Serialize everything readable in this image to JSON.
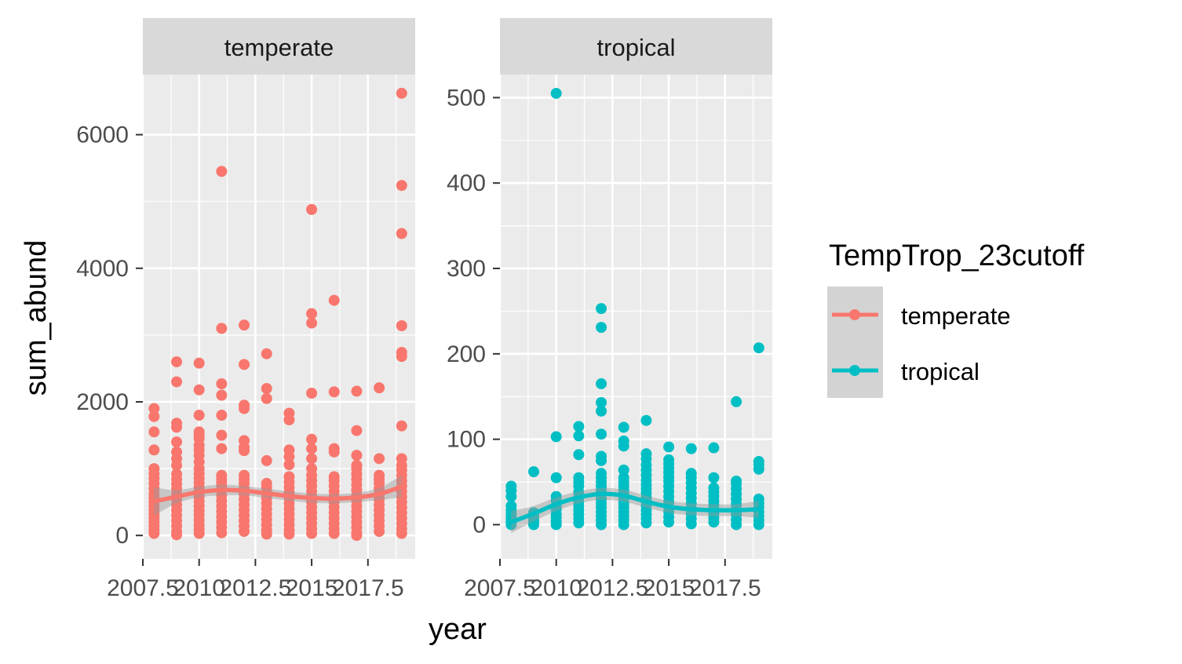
{
  "chart_data": [
    {
      "type": "scatter",
      "facet": "temperate",
      "xlabel": "year",
      "ylabel": "sum_abund",
      "x_ticks": [
        2007.5,
        2010,
        2012.5,
        2015,
        2017.5
      ],
      "x_tick_labels": [
        "2007.5",
        "2010",
        "2012.5",
        "2015",
        "2017.5"
      ],
      "xlim": [
        2007.5,
        2019.6
      ],
      "y_ticks": [
        0,
        2000,
        4000,
        6000
      ],
      "y_tick_labels": [
        "0",
        "2000",
        "4000",
        "6000"
      ],
      "ylim": [
        -350,
        6900
      ],
      "grid": true,
      "series": [
        {
          "name": "temperate",
          "color": "#F8766D",
          "points_by_year": [
            {
              "x": 2008,
              "values": [
                1900,
                1780,
                1550,
                1280,
                1000,
                920,
                850,
                780,
                700,
                620,
                560,
                500,
                440,
                380,
                320,
                260,
                200,
                140,
                80,
                30
              ]
            },
            {
              "x": 2009,
              "values": [
                2600,
                2300,
                1680,
                1620,
                1400,
                1250,
                1150,
                1050,
                920,
                840,
                770,
                700,
                620,
                540,
                460,
                380,
                300,
                220,
                140,
                60,
                10
              ]
            },
            {
              "x": 2010,
              "values": [
                2580,
                2180,
                1800,
                1550,
                1500,
                1450,
                1350,
                1280,
                1200,
                1100,
                1000,
                930,
                860,
                790,
                720,
                650,
                580,
                510,
                440,
                370,
                300,
                230,
                160,
                90,
                30
              ]
            },
            {
              "x": 2011,
              "values": [
                5450,
                3100,
                2270,
                2100,
                1800,
                1500,
                1300,
                900,
                850,
                800,
                740,
                680,
                600,
                520,
                440,
                360,
                280,
                200,
                120,
                40
              ]
            },
            {
              "x": 2012,
              "values": [
                3150,
                2560,
                1950,
                1900,
                1420,
                1320,
                1270,
                900,
                840,
                780,
                700,
                620,
                540,
                460,
                380,
                300,
                220,
                140,
                60
              ]
            },
            {
              "x": 2013,
              "values": [
                2720,
                2200,
                2050,
                1120,
                780,
                720,
                640,
                560,
                480,
                400,
                320,
                240,
                160,
                80,
                20
              ]
            },
            {
              "x": 2014,
              "values": [
                1830,
                1730,
                1280,
                1180,
                1060,
                880,
                800,
                720,
                640,
                560,
                480,
                400,
                320,
                240,
                160,
                80,
                20
              ]
            },
            {
              "x": 2015,
              "values": [
                4880,
                3320,
                3180,
                2130,
                1440,
                1300,
                1150,
                1000,
                900,
                820,
                740,
                660,
                580,
                500,
                420,
                340,
                260,
                180,
                100,
                30
              ]
            },
            {
              "x": 2016,
              "values": [
                3520,
                2150,
                1300,
                1250,
                880,
                820,
                740,
                660,
                580,
                500,
                420,
                340,
                260,
                180,
                100,
                30
              ]
            },
            {
              "x": 2017,
              "values": [
                2160,
                1570,
                1200,
                1050,
                1000,
                920,
                840,
                760,
                680,
                600,
                520,
                440,
                360,
                280,
                200,
                120,
                40,
                0
              ]
            },
            {
              "x": 2018,
              "values": [
                2210,
                1150,
                900,
                840,
                780,
                700,
                620,
                540,
                460,
                380,
                300,
                220,
                140,
                60
              ]
            },
            {
              "x": 2019,
              "values": [
                6620,
                5240,
                4520,
                3140,
                2740,
                2680,
                1640,
                1150,
                1050,
                980,
                900,
                820,
                740,
                660,
                580,
                500,
                420,
                340,
                260,
                180,
                100,
                30
              ]
            }
          ],
          "smooth": [
            {
              "x": 2008,
              "y": 510,
              "lo": 300,
              "hi": 720
            },
            {
              "x": 2009,
              "y": 580,
              "lo": 480,
              "hi": 680
            },
            {
              "x": 2010,
              "y": 650,
              "lo": 570,
              "hi": 730
            },
            {
              "x": 2011,
              "y": 680,
              "lo": 600,
              "hi": 760
            },
            {
              "x": 2012,
              "y": 670,
              "lo": 600,
              "hi": 740
            },
            {
              "x": 2013,
              "y": 630,
              "lo": 560,
              "hi": 700
            },
            {
              "x": 2014,
              "y": 590,
              "lo": 520,
              "hi": 660
            },
            {
              "x": 2015,
              "y": 560,
              "lo": 490,
              "hi": 630
            },
            {
              "x": 2016,
              "y": 550,
              "lo": 480,
              "hi": 620
            },
            {
              "x": 2017,
              "y": 570,
              "lo": 500,
              "hi": 640
            },
            {
              "x": 2018,
              "y": 620,
              "lo": 530,
              "hi": 710
            },
            {
              "x": 2019,
              "y": 730,
              "lo": 570,
              "hi": 900
            }
          ]
        }
      ]
    },
    {
      "type": "scatter",
      "facet": "tropical",
      "xlabel": "year",
      "ylabel": "sum_abund",
      "x_ticks": [
        2007.5,
        2010,
        2012.5,
        2015,
        2017.5
      ],
      "x_tick_labels": [
        "2007.5",
        "2010",
        "2012.5",
        "2015",
        "2017.5"
      ],
      "xlim": [
        2007.5,
        2019.6
      ],
      "y_ticks": [
        0,
        100,
        200,
        300,
        400,
        500
      ],
      "y_tick_labels": [
        "0",
        "100",
        "200",
        "300",
        "400",
        "500"
      ],
      "ylim": [
        -40,
        527
      ],
      "grid": true,
      "series": [
        {
          "name": "tropical",
          "color": "#00BFC4",
          "points_by_year": [
            {
              "x": 2008,
              "values": [
                45,
                40,
                33,
                22,
                17,
                12,
                8,
                5,
                2,
                0
              ]
            },
            {
              "x": 2009,
              "values": [
                62,
                14,
                10,
                6,
                3,
                0
              ]
            },
            {
              "x": 2010,
              "values": [
                505,
                103,
                55,
                33,
                28,
                22,
                18,
                12,
                8,
                4,
                0
              ]
            },
            {
              "x": 2011,
              "values": [
                115,
                104,
                82,
                55,
                50,
                45,
                38,
                32,
                27,
                22,
                17,
                12,
                7,
                2
              ]
            },
            {
              "x": 2012,
              "values": [
                253,
                231,
                165,
                143,
                133,
                106,
                80,
                75,
                60,
                55,
                50,
                45,
                40,
                35,
                30,
                25,
                20,
                15,
                10,
                5,
                0
              ]
            },
            {
              "x": 2013,
              "values": [
                114,
                98,
                92,
                64,
                55,
                50,
                45,
                40,
                35,
                30,
                25,
                20,
                15,
                10,
                5,
                0
              ]
            },
            {
              "x": 2014,
              "values": [
                122,
                83,
                77,
                70,
                64,
                58,
                52,
                47,
                42,
                37,
                32,
                27,
                22,
                17,
                12,
                7,
                2
              ]
            },
            {
              "x": 2015,
              "values": [
                91,
                76,
                71,
                66,
                61,
                56,
                51,
                45,
                39,
                33,
                27,
                21,
                15,
                9,
                3
              ]
            },
            {
              "x": 2016,
              "values": [
                89,
                60,
                55,
                49,
                43,
                37,
                31,
                25,
                19,
                13,
                7,
                1
              ]
            },
            {
              "x": 2017,
              "values": [
                90,
                55,
                43,
                38,
                33,
                28,
                23,
                18,
                13,
                8,
                3
              ]
            },
            {
              "x": 2018,
              "values": [
                144,
                51,
                48,
                42,
                36,
                30,
                24,
                18,
                12,
                6,
                0
              ]
            },
            {
              "x": 2019,
              "values": [
                207,
                74,
                70,
                65,
                30,
                25,
                20,
                15,
                10,
                5,
                0
              ]
            }
          ],
          "smooth": [
            {
              "x": 2008,
              "y": 3,
              "lo": -10,
              "hi": 16
            },
            {
              "x": 2009,
              "y": 13,
              "lo": 4,
              "hi": 22
            },
            {
              "x": 2010,
              "y": 24,
              "lo": 16,
              "hi": 32
            },
            {
              "x": 2011,
              "y": 32,
              "lo": 25,
              "hi": 39
            },
            {
              "x": 2012,
              "y": 36,
              "lo": 29,
              "hi": 43
            },
            {
              "x": 2013,
              "y": 34,
              "lo": 27,
              "hi": 41
            },
            {
              "x": 2014,
              "y": 27,
              "lo": 20,
              "hi": 34
            },
            {
              "x": 2015,
              "y": 21,
              "lo": 14,
              "hi": 28
            },
            {
              "x": 2016,
              "y": 18,
              "lo": 11,
              "hi": 25
            },
            {
              "x": 2017,
              "y": 17,
              "lo": 10,
              "hi": 24
            },
            {
              "x": 2018,
              "y": 17,
              "lo": 10,
              "hi": 24
            },
            {
              "x": 2019,
              "y": 18,
              "lo": 8,
              "hi": 28
            }
          ]
        }
      ]
    }
  ],
  "legend": {
    "title": "TempTrop_23cutoff",
    "items": [
      {
        "label": "temperate",
        "color": "#F8766D"
      },
      {
        "label": "tropical",
        "color": "#00BFC4"
      }
    ]
  },
  "colors": {
    "panel_bg": "#EBEBEB",
    "strip_bg": "#D9D9D9",
    "grid": "#FFFFFF",
    "ribbon": "#999999",
    "legend_key_bg": "#D3D3D3"
  }
}
